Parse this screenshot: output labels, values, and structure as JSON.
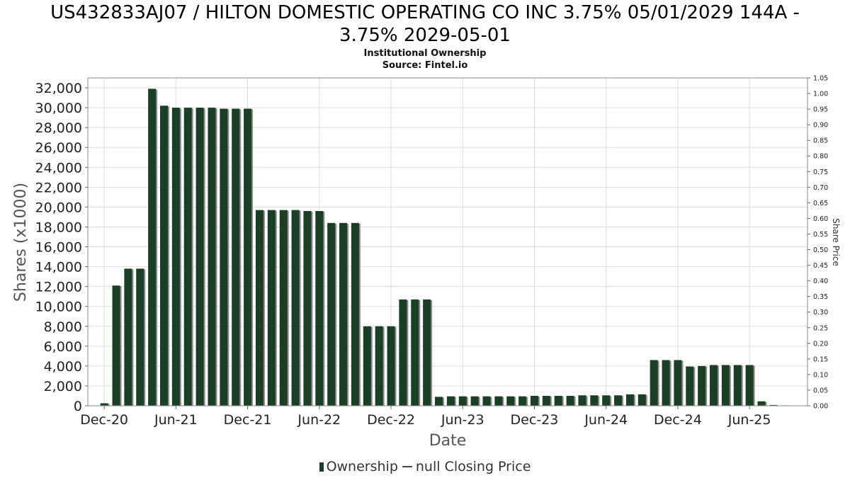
{
  "header": {
    "title_line1": "US432833AJ07 / HILTON DOMESTIC OPERATING CO INC 3.75% 05/01/2029 144A -",
    "title_line2": "3.75% 2029-05-01",
    "subtitle1": "Institutional Ownership",
    "subtitle2": "Source: Fintel.io"
  },
  "colors": {
    "bar": "#1a3f24",
    "bar_shadow": "#8c8c8c",
    "grid": "#dddddd",
    "axis": "#888888"
  },
  "legend": {
    "ownership_label": "Ownership",
    "price_label": "null Closing Price"
  },
  "chart_data": {
    "type": "bar",
    "title": "US432833AJ07 / HILTON DOMESTIC OPERATING CO INC 3.75% 05/01/2029 144A - 3.75% 2029-05-01",
    "xlabel": "Date",
    "ylabel": "Shares (x1000)",
    "y2label": "Share Price",
    "ylim": [
      0,
      33000
    ],
    "y2lim": [
      0,
      1.05
    ],
    "yticks": [
      "0",
      "2,000",
      "4,000",
      "6,000",
      "8,000",
      "10,000",
      "12,000",
      "14,000",
      "16,000",
      "18,000",
      "20,000",
      "22,000",
      "24,000",
      "26,000",
      "28,000",
      "30,000",
      "32,000"
    ],
    "y2ticks": [
      "0.00",
      "0.05",
      "0.10",
      "0.15",
      "0.20",
      "0.25",
      "0.30",
      "0.35",
      "0.40",
      "0.45",
      "0.50",
      "0.55",
      "0.60",
      "0.65",
      "0.70",
      "0.75",
      "0.80",
      "0.85",
      "0.90",
      "0.95",
      "1.00",
      "1.05"
    ],
    "xticks": [
      "Dec-20",
      "Jun-21",
      "Dec-21",
      "Jun-22",
      "Dec-22",
      "Jun-23",
      "Dec-23",
      "Jun-24",
      "Dec-24",
      "Jun-25"
    ],
    "grid": true,
    "legend_position": "bottom",
    "series": [
      {
        "name": "Ownership",
        "values": [
          0,
          0,
          250,
          12100,
          13800,
          13800,
          31900,
          30200,
          30000,
          30000,
          30000,
          30000,
          29900,
          29900,
          29900,
          19700,
          19700,
          19700,
          19700,
          19600,
          19600,
          18400,
          18400,
          18400,
          8000,
          8000,
          8000,
          10700,
          10700,
          10700,
          900,
          950,
          950,
          950,
          950,
          950,
          950,
          950,
          1000,
          1000,
          1000,
          1000,
          1050,
          1050,
          1050,
          1050,
          1150,
          1150,
          4600,
          4600,
          4600,
          3950,
          4000,
          4100,
          4100,
          4100,
          4100,
          450,
          80,
          40
        ]
      }
    ]
  }
}
